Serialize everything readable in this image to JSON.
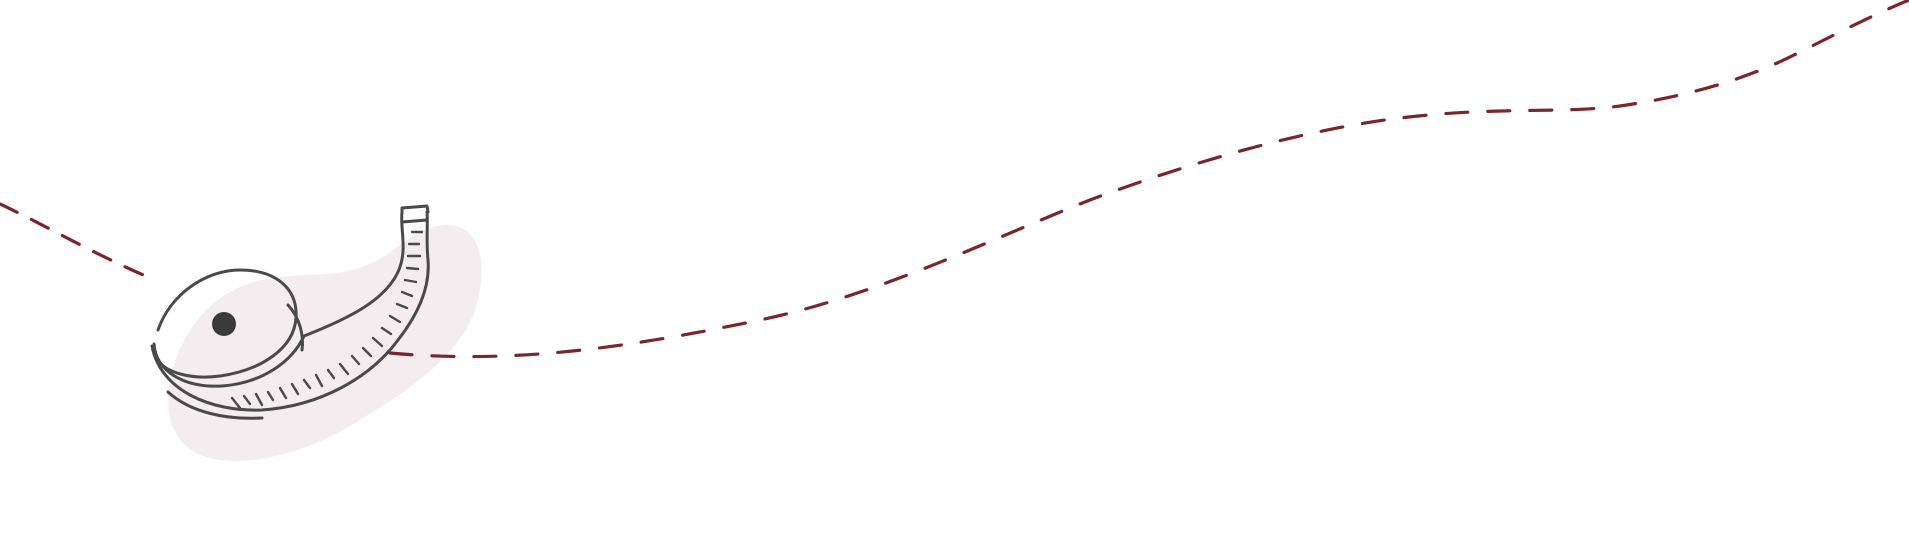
{
  "illustration": {
    "subject": "tape-measure",
    "decoration": "dashed-stitch-line"
  },
  "colors": {
    "background": "#ffffff",
    "stitch": "#7a262b",
    "tape_outline": "#4a4a4a",
    "tape_hub": "#3a3a3a",
    "blob": "#f4edf0"
  }
}
